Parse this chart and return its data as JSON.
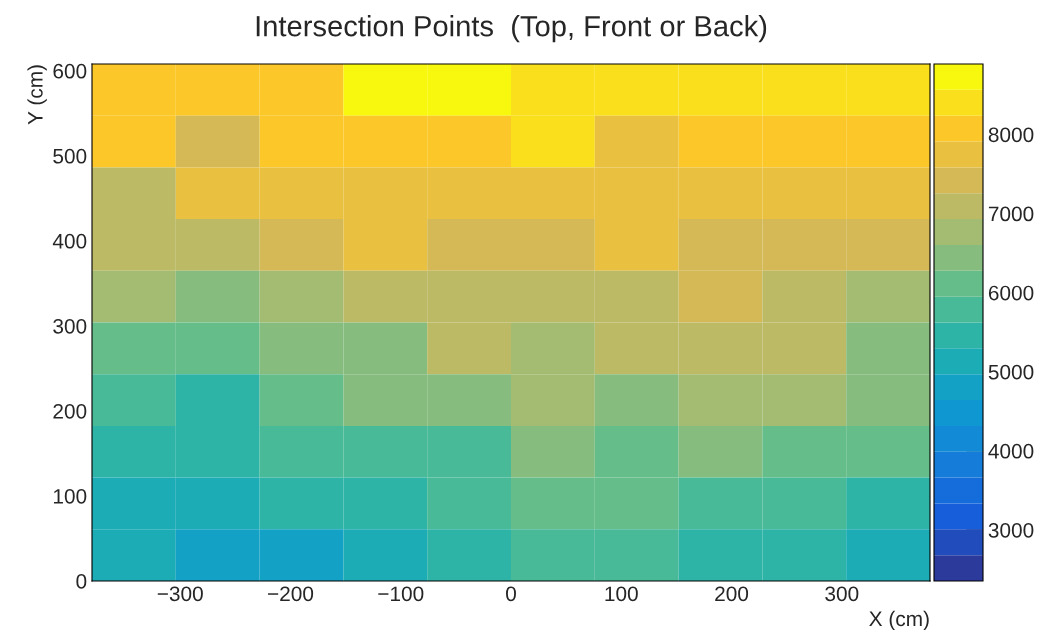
{
  "chart_data": {
    "type": "heatmap",
    "title": "Intersection Points  (Top, Front or Back)",
    "xlabel": "X (cm)",
    "ylabel": "Y (cm)",
    "x": [
      -342,
      -266,
      -190,
      -114,
      -38,
      38,
      114,
      190,
      266,
      342
    ],
    "y": [
      577.6,
      516.8,
      456,
      395.2,
      334.4,
      273.6,
      212.8,
      152,
      91.2,
      30.4
    ],
    "cells": [
      [
        8080,
        8080,
        8080,
        8730,
        8730,
        8400,
        8400,
        8400,
        8400,
        8400
      ],
      [
        8080,
        7420,
        8080,
        8080,
        8080,
        8400,
        7750,
        8080,
        8080,
        8080
      ],
      [
        7100,
        7750,
        7750,
        7750,
        7750,
        7750,
        7750,
        7750,
        7750,
        7750
      ],
      [
        7100,
        7100,
        7420,
        7750,
        7420,
        7420,
        7750,
        7420,
        7420,
        7420
      ],
      [
        6770,
        6440,
        6770,
        7100,
        7100,
        7100,
        7100,
        7420,
        7100,
        6770
      ],
      [
        6120,
        6120,
        6440,
        6440,
        7100,
        6770,
        7100,
        7100,
        7100,
        6440
      ],
      [
        5790,
        5460,
        6120,
        6440,
        6440,
        6770,
        6440,
        6770,
        6770,
        6440
      ],
      [
        5460,
        5460,
        5790,
        5790,
        5790,
        6440,
        6120,
        6440,
        6120,
        6120
      ],
      [
        5130,
        5130,
        5460,
        5460,
        5790,
        6120,
        6120,
        5790,
        5790,
        5460
      ],
      [
        5130,
        4810,
        4810,
        5130,
        5460,
        5790,
        5790,
        5460,
        5460,
        5130
      ]
    ],
    "xlim": [
      -380,
      380
    ],
    "ylim": [
      0,
      608
    ],
    "xticks": [
      -300,
      -200,
      -100,
      0,
      100,
      200,
      300
    ],
    "yticks": [
      0,
      100,
      200,
      300,
      400,
      500,
      600
    ],
    "clim": [
      2355,
      8890
    ],
    "cticks": [
      3000,
      4000,
      5000,
      6000,
      7000,
      8000
    ]
  }
}
